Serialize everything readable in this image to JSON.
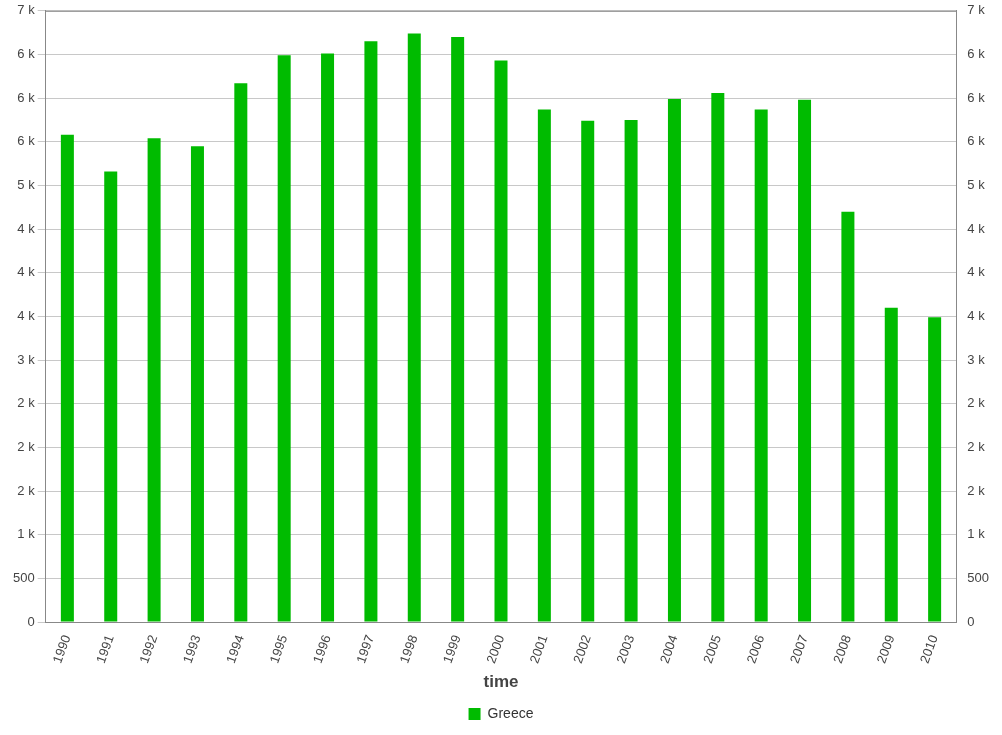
{
  "chart_data": {
    "type": "bar",
    "xlabel": "time",
    "categories": [
      "1990",
      "1991",
      "1992",
      "1993",
      "1994",
      "1995",
      "1996",
      "1997",
      "1998",
      "1999",
      "2000",
      "2001",
      "2002",
      "2003",
      "2004",
      "2005",
      "2006",
      "2007",
      "2008",
      "2009",
      "2010"
    ],
    "series": [
      {
        "name": "Greece",
        "color": "#00bb00",
        "values": [
          5580,
          5160,
          5540,
          5450,
          6170,
          6490,
          6510,
          6650,
          6740,
          6700,
          6430,
          5870,
          5740,
          5750,
          5990,
          6060,
          5870,
          5980,
          4700,
          3600,
          3490
        ]
      }
    ],
    "ylim": [
      0,
      7000
    ],
    "yticks": [
      0,
      500,
      {
        "value": 1000,
        "label": "1 k"
      },
      {
        "value": 1500,
        "label": "2 k"
      },
      {
        "value": 2000,
        "label": "2 k"
      },
      {
        "value": 2500,
        "label": "2 k"
      },
      {
        "value": 3000,
        "label": "3 k"
      },
      {
        "value": 3500,
        "label": "4 k"
      },
      {
        "value": 4000,
        "label": "4 k"
      },
      {
        "value": 4500,
        "label": "4 k"
      },
      {
        "value": 5000,
        "label": "5 k"
      },
      {
        "value": 5500,
        "label": "6 k"
      },
      {
        "value": 6000,
        "label": "6 k"
      },
      {
        "value": 6500,
        "label": "6 k"
      },
      {
        "value": 7000,
        "label": "7 k"
      }
    ],
    "y2lim": [
      0,
      7000
    ],
    "y2ticks": [
      0,
      500,
      {
        "value": 1000,
        "label": "1 k"
      },
      {
        "value": 1500,
        "label": "2 k"
      },
      {
        "value": 2000,
        "label": "2 k"
      },
      {
        "value": 2500,
        "label": "2 k"
      },
      {
        "value": 3000,
        "label": "3 k"
      },
      {
        "value": 3500,
        "label": "4 k"
      },
      {
        "value": 4000,
        "label": "4 k"
      },
      {
        "value": 4500,
        "label": "4 k"
      },
      {
        "value": 5000,
        "label": "5 k"
      },
      {
        "value": 5500,
        "label": "6 k"
      },
      {
        "value": 6000,
        "label": "6 k"
      },
      {
        "value": 6500,
        "label": "6 k"
      },
      {
        "value": 7000,
        "label": "7 k"
      }
    ],
    "grid": "y",
    "legend": "bottom"
  }
}
